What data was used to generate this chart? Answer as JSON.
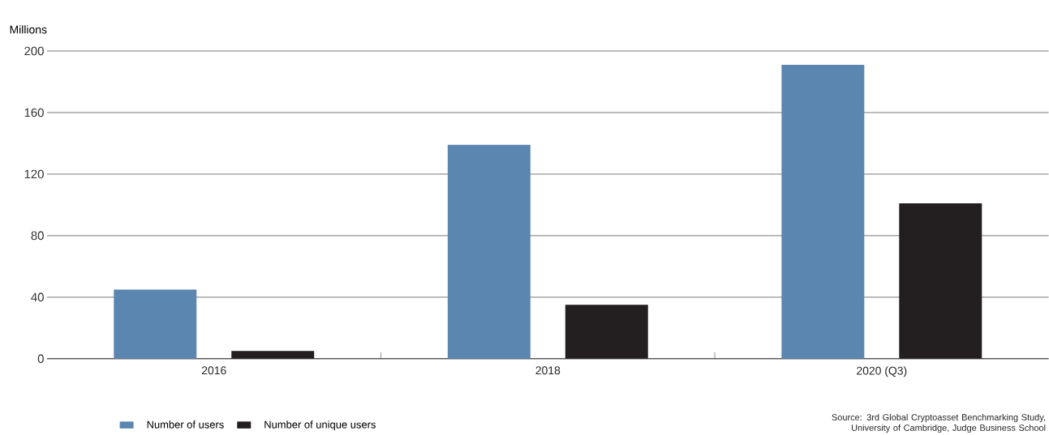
{
  "chart_data": {
    "type": "bar",
    "ylabel": "Millions",
    "categories": [
      "2016",
      "2018",
      "2020 (Q3)"
    ],
    "series": [
      {
        "name": "Number of users",
        "color": "#5b86b0",
        "values": [
          45,
          139,
          191
        ]
      },
      {
        "name": "Number of unique users",
        "color": "#231f20",
        "values": [
          5,
          35,
          101
        ]
      }
    ],
    "ylim": [
      0,
      200
    ],
    "yticks": [
      0,
      40,
      80,
      120,
      160,
      200
    ],
    "grid": "y",
    "legend": "bottom",
    "annotations": [
      "Source: 3rd Global Cryptoasset Benchmarking Study, University of Cambridge, Judge Business School"
    ]
  }
}
